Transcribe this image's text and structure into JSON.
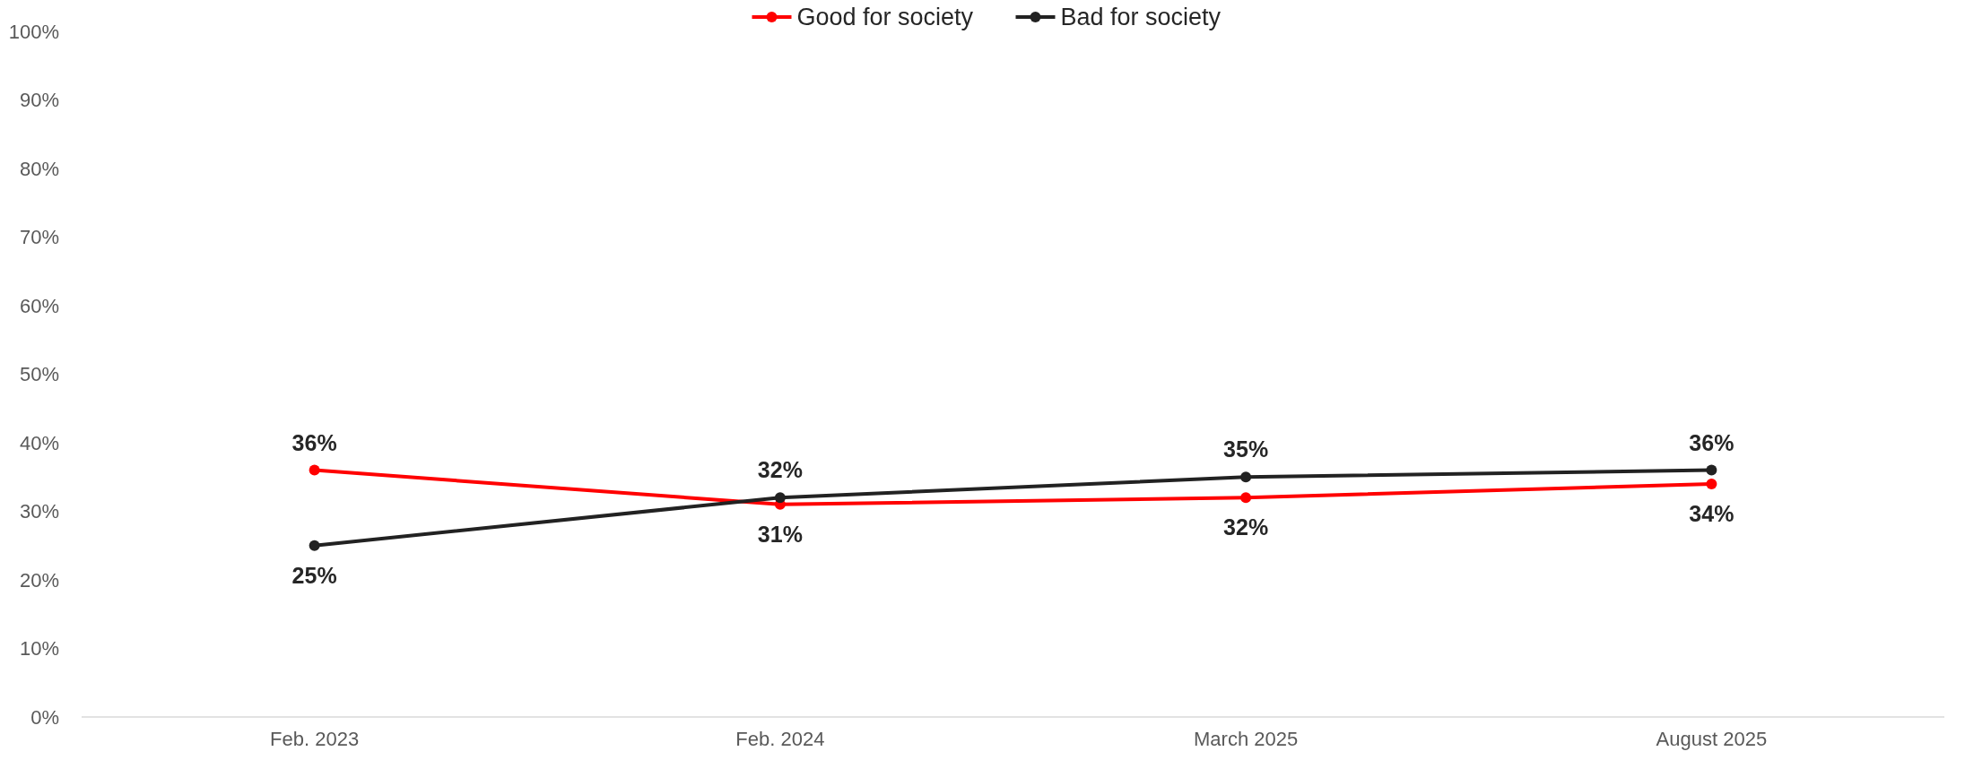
{
  "chart_data": {
    "type": "line",
    "categories": [
      "Feb. 2023",
      "Feb. 2024",
      "March 2025",
      "August 2025"
    ],
    "series": [
      {
        "name": "Good for society",
        "color": "#ff0000",
        "values": [
          36,
          31,
          32,
          34
        ],
        "value_labels": [
          "36%",
          "31%",
          "32%",
          "34%"
        ]
      },
      {
        "name": "Bad for society",
        "color": "#222222",
        "values": [
          25,
          32,
          35,
          36
        ],
        "value_labels": [
          "25%",
          "32%",
          "35%",
          "36%"
        ]
      }
    ],
    "ylim": [
      0,
      100
    ],
    "yticks": [
      {
        "value": 0,
        "label": "0%"
      },
      {
        "value": 10,
        "label": "10%"
      },
      {
        "value": 20,
        "label": "20%"
      },
      {
        "value": 30,
        "label": "30%"
      },
      {
        "value": 40,
        "label": "40%"
      },
      {
        "value": 50,
        "label": "50%"
      },
      {
        "value": 60,
        "label": "60%"
      },
      {
        "value": 70,
        "label": "70%"
      },
      {
        "value": 80,
        "label": "80%"
      },
      {
        "value": 90,
        "label": "90%"
      },
      {
        "value": 100,
        "label": "100%"
      }
    ],
    "grid": false,
    "legend": "top",
    "marker": "circle",
    "line_style": "solid"
  }
}
